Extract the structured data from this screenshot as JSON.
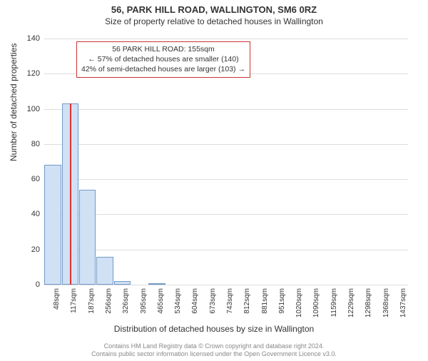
{
  "title": "56, PARK HILL ROAD, WALLINGTON, SM6 0RZ",
  "subtitle": "Size of property relative to detached houses in Wallington",
  "chart": {
    "type": "histogram",
    "y_axis_title": "Number of detached properties",
    "x_axis_title": "Distribution of detached houses by size in Wallington",
    "ylim_max": 140,
    "ytick_step": 20,
    "yticks": [
      0,
      20,
      40,
      60,
      80,
      100,
      120,
      140
    ],
    "xtick_labels": [
      "48sqm",
      "117sqm",
      "187sqm",
      "256sqm",
      "326sqm",
      "395sqm",
      "465sqm",
      "534sqm",
      "604sqm",
      "673sqm",
      "743sqm",
      "812sqm",
      "881sqm",
      "951sqm",
      "1020sqm",
      "1090sqm",
      "1159sqm",
      "1229sqm",
      "1298sqm",
      "1368sqm",
      "1437sqm"
    ],
    "bars": [
      68,
      103,
      54,
      16,
      2,
      0,
      1,
      0,
      0,
      0,
      0,
      0,
      0,
      0,
      0,
      0,
      0,
      0,
      0,
      0,
      0
    ],
    "bar_fill": "#d0e1f5",
    "bar_stroke": "#7399c6",
    "grid_color": "#dddddd",
    "background_color": "#ffffff",
    "marker": {
      "value_sqm": 155,
      "x_min_sqm": 48,
      "x_step_sqm": 69.45,
      "height_value": 103,
      "color": "#e03030"
    },
    "annotation": {
      "line1": "56 PARK HILL ROAD: 155sqm",
      "line2": "← 57% of detached houses are smaller (140)",
      "line3": "42% of semi-detached houses are larger (103) →",
      "border_color": "#cc3333"
    }
  },
  "footer": {
    "line1": "Contains HM Land Registry data © Crown copyright and database right 2024.",
    "line2": "Contains public sector information licensed under the Open Government Licence v3.0."
  }
}
